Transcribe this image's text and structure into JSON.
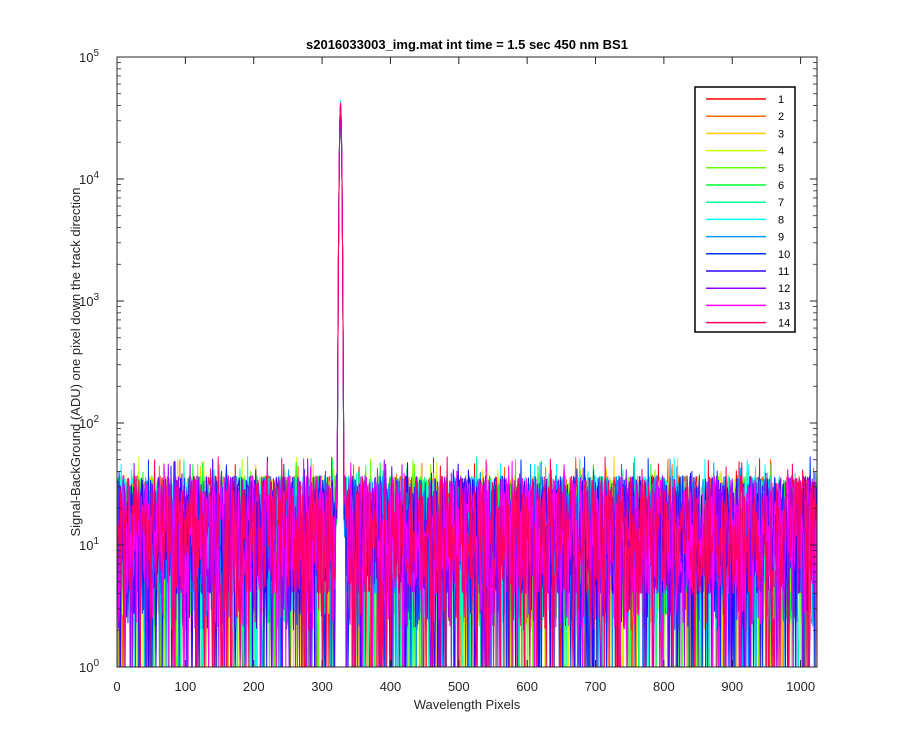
{
  "chart_data": {
    "type": "line",
    "title": "s2016033003_img.mat int time = 1.5 sec  450 nm BS1",
    "xlabel": "Wavelength Pixels",
    "ylabel": "Signal-BackGround (ADU) one pixel down the track direction",
    "xlim": [
      0,
      1024
    ],
    "ylim": [
      1,
      100000
    ],
    "yscale": "log",
    "x_ticks": [
      "0",
      "100",
      "200",
      "300",
      "400",
      "500",
      "600",
      "700",
      "800",
      "900",
      "1000"
    ],
    "y_tick_bases": [
      "10",
      "10",
      "10",
      "10",
      "10",
      "10"
    ],
    "y_tick_exponents": [
      "0",
      "1",
      "2",
      "3",
      "4",
      "5"
    ],
    "grid": false,
    "legend_position": "top-right",
    "peak": {
      "x": 327,
      "y": 44000
    },
    "noise_range": [
      1,
      55
    ],
    "series": [
      {
        "name": "1",
        "color": "#ff0000"
      },
      {
        "name": "2",
        "color": "#ff6a00"
      },
      {
        "name": "3",
        "color": "#ffcc00"
      },
      {
        "name": "4",
        "color": "#ccff00"
      },
      {
        "name": "5",
        "color": "#66ff00"
      },
      {
        "name": "6",
        "color": "#00ff33"
      },
      {
        "name": "7",
        "color": "#00ff99"
      },
      {
        "name": "8",
        "color": "#00ffff"
      },
      {
        "name": "9",
        "color": "#0099ff"
      },
      {
        "name": "10",
        "color": "#0033ff"
      },
      {
        "name": "11",
        "color": "#3300ff"
      },
      {
        "name": "12",
        "color": "#9900ff"
      },
      {
        "name": "13",
        "color": "#ff00ff"
      },
      {
        "name": "14",
        "color": "#ff0066"
      }
    ]
  }
}
